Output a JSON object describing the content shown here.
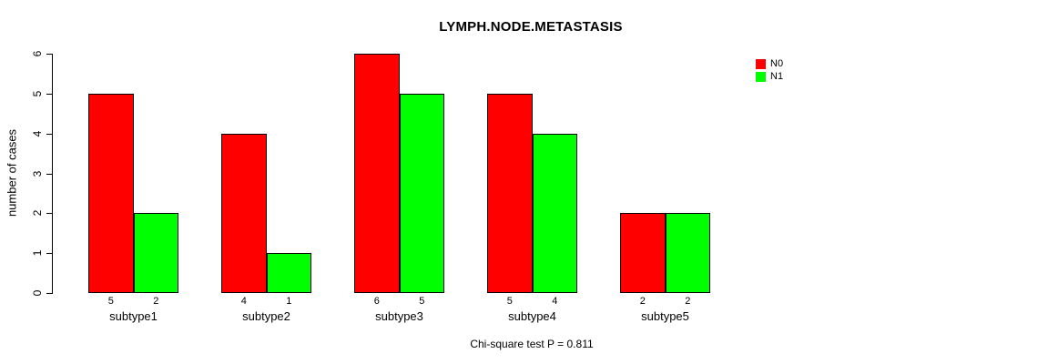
{
  "chart_data": {
    "type": "bar",
    "title": "LYMPH.NODE.METASTASIS",
    "xlabel": "",
    "ylabel": "number of cases",
    "categories": [
      "subtype1",
      "subtype2",
      "subtype3",
      "subtype4",
      "subtype5"
    ],
    "series": [
      {
        "name": "N0",
        "color": "#FF0000",
        "values": [
          5,
          4,
          6,
          5,
          2
        ]
      },
      {
        "name": "N1",
        "color": "#00FF00",
        "values": [
          2,
          1,
          5,
          4,
          2
        ]
      }
    ],
    "bar_value_labels": [
      [
        "5",
        "2"
      ],
      [
        "4",
        "1"
      ],
      [
        "6",
        "5"
      ],
      [
        "5",
        "4"
      ],
      [
        "2",
        "2"
      ]
    ],
    "yticks": [
      0,
      1,
      2,
      3,
      4,
      5,
      6
    ],
    "ylim": [
      0,
      6
    ],
    "grid": false,
    "legend_position": "top-right",
    "annotation": "Chi-square test P = 0.811"
  },
  "colors": {
    "n0": "#FF0000",
    "n1": "#00FF00",
    "axis": "#000000",
    "background": "#FFFFFF"
  }
}
